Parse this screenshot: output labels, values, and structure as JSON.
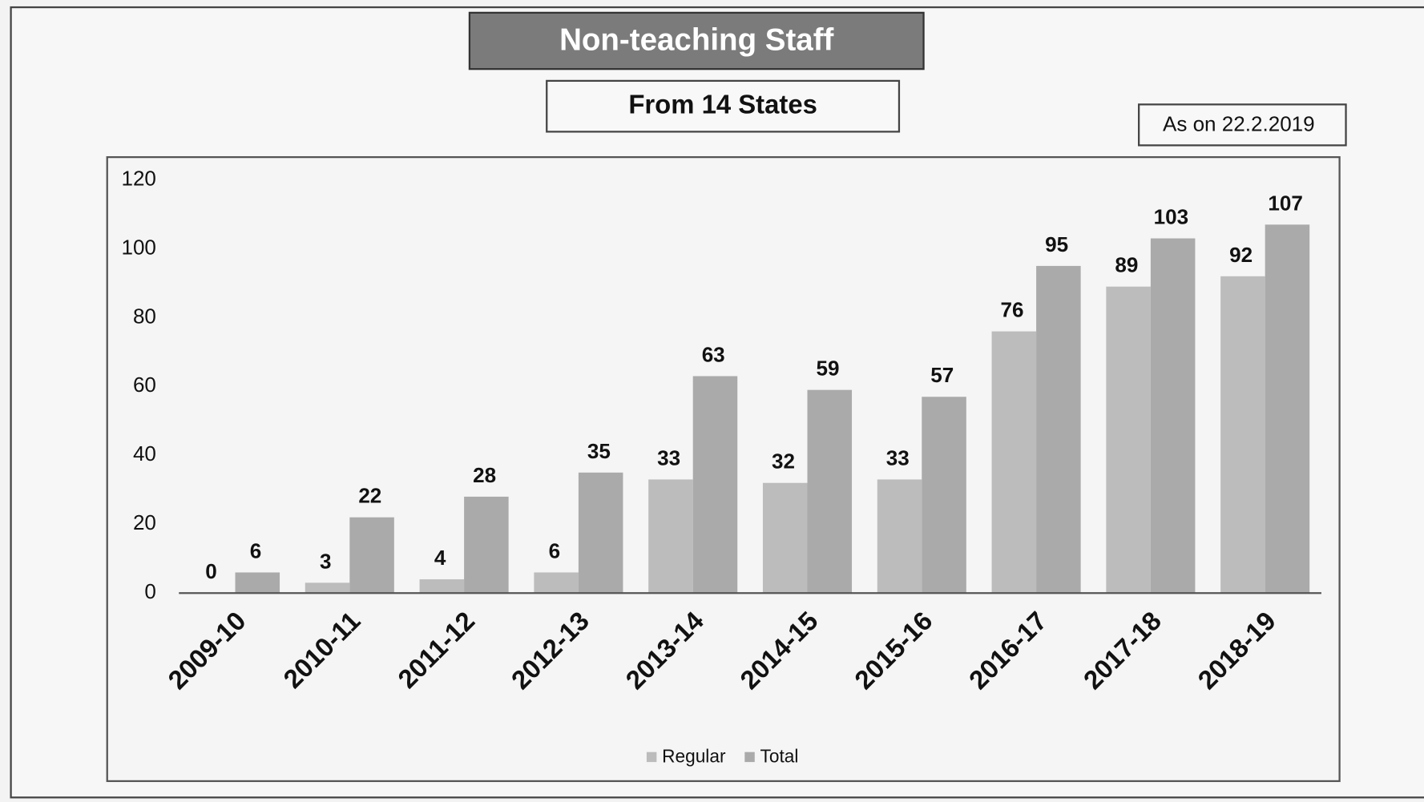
{
  "chart_data": {
    "type": "bar",
    "title": "Non-teaching Staff",
    "subtitle": "From 14 States",
    "annotation": "As on 22.2.2019",
    "categories": [
      "2009-10",
      "2010-11",
      "2011-12",
      "2012-13",
      "2013-14",
      "2014-15",
      "2015-16",
      "2016-17",
      "2017-18",
      "2018-19"
    ],
    "series": [
      {
        "name": "Regular",
        "color": "#bcbcbc",
        "values": [
          0,
          3,
          4,
          6,
          33,
          32,
          33,
          76,
          89,
          92
        ]
      },
      {
        "name": "Total",
        "color": "#aaaaaa",
        "values": [
          6,
          22,
          28,
          35,
          63,
          59,
          57,
          95,
          103,
          107
        ]
      }
    ],
    "ylim": [
      0,
      120
    ],
    "yticks": [
      0,
      20,
      40,
      60,
      80,
      100,
      120
    ],
    "grid": false,
    "legend": "bottom"
  }
}
